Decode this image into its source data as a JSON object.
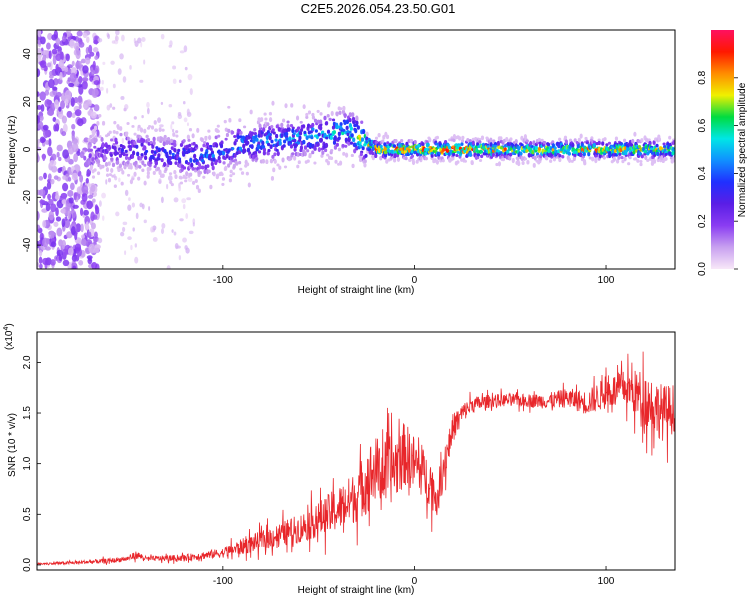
{
  "figure_title": "C2E5.2026.054.23.50.G01",
  "chart_data": [
    {
      "type": "heatmap",
      "name": "spectrogram",
      "title": "C2E5.2026.054.23.50.G01",
      "xlabel": "Height of straight line (km)",
      "ylabel": "Frequency (Hz)",
      "xlim": [
        -197,
        136
      ],
      "ylim": [
        -50,
        50
      ],
      "xticks": [
        -100,
        0,
        100
      ],
      "yticks": [
        -40,
        -20,
        0,
        20,
        40
      ],
      "colorbar": {
        "label": "Normalized spectral amplitude",
        "range": [
          0.0,
          1.0
        ],
        "ticks": [
          0.0,
          0.2,
          0.4,
          0.6,
          0.8
        ],
        "tick_labels": [
          "0.0",
          "0.2",
          "0.4",
          "0.6",
          "0.8"
        ],
        "colors": [
          "#f8e8f8",
          "#c8a0f0",
          "#8a3cf2",
          "#5a1ee6",
          "#2030ff",
          "#1090ff",
          "#00e6e6",
          "#00dc40",
          "#f0f000",
          "#ff8c00",
          "#ff1800",
          "#ff1060"
        ]
      },
      "signal_trace": {
        "description": "Narrow band of high amplitude near 0 Hz; broad low-amplitude noise below -160 km",
        "x": [
          -170,
          -150,
          -130,
          -110,
          -90,
          -70,
          -50,
          -35,
          -20,
          0,
          20,
          40,
          60,
          80,
          100,
          120,
          136
        ],
        "center_freq": [
          -1,
          0,
          -2,
          -3,
          2,
          4,
          6,
          8,
          0,
          0,
          0,
          0,
          0,
          0,
          0,
          0,
          0
        ],
        "amplitude": [
          0.2,
          0.3,
          0.35,
          0.4,
          0.45,
          0.45,
          0.5,
          0.55,
          0.8,
          0.85,
          0.9,
          0.8,
          0.75,
          0.75,
          0.8,
          0.75,
          0.7
        ]
      }
    },
    {
      "type": "line",
      "name": "snr",
      "xlabel": "Height of straight line (km)",
      "ylabel": "SNR (10 * v/v)",
      "y_scale_label": "(x10",
      "y_scale_exponent": "4",
      "y_scale_suffix": ")",
      "xlim": [
        -197,
        136
      ],
      "ylim": [
        -0.05,
        2.3
      ],
      "xticks": [
        -100,
        0,
        100
      ],
      "yticks": [
        0.0,
        0.5,
        1.0,
        1.5,
        2.0
      ],
      "ytick_labels": [
        "0.0",
        "0.5",
        "1.0",
        "1.5",
        "2.0"
      ],
      "color": "#e8262a",
      "series": [
        {
          "name": "SNR",
          "x": [
            -197,
            -180,
            -160,
            -150,
            -145,
            -140,
            -120,
            -100,
            -90,
            -80,
            -70,
            -60,
            -50,
            -40,
            -30,
            -25,
            -20,
            -15,
            -10,
            -5,
            0,
            5,
            10,
            12,
            15,
            20,
            25,
            30,
            40,
            50,
            60,
            70,
            80,
            90,
            100,
            110,
            120,
            130,
            136
          ],
          "values": [
            0.01,
            0.02,
            0.04,
            0.06,
            0.1,
            0.06,
            0.07,
            0.12,
            0.18,
            0.24,
            0.3,
            0.36,
            0.45,
            0.55,
            0.68,
            0.85,
            0.95,
            0.9,
            0.98,
            1.1,
            1.0,
            0.9,
            0.75,
            0.6,
            0.95,
            1.35,
            1.5,
            1.58,
            1.62,
            1.63,
            1.62,
            1.62,
            1.65,
            1.6,
            1.7,
            1.75,
            1.65,
            1.5,
            1.55
          ],
          "spread": [
            0.01,
            0.02,
            0.03,
            0.03,
            0.05,
            0.03,
            0.04,
            0.06,
            0.1,
            0.12,
            0.15,
            0.18,
            0.22,
            0.28,
            0.32,
            0.42,
            0.4,
            0.42,
            0.42,
            0.4,
            0.35,
            0.3,
            0.28,
            0.15,
            0.25,
            0.18,
            0.12,
            0.1,
            0.08,
            0.08,
            0.08,
            0.1,
            0.12,
            0.15,
            0.2,
            0.22,
            0.35,
            0.35,
            0.3
          ]
        }
      ]
    }
  ]
}
